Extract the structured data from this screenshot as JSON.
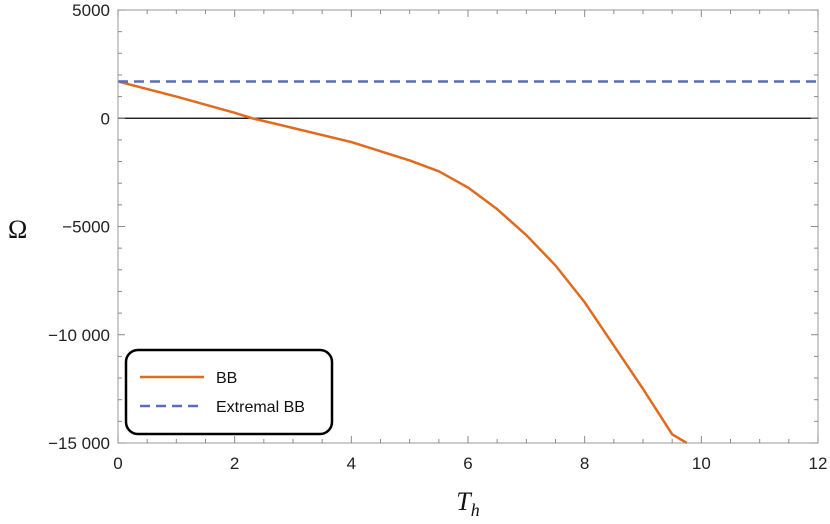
{
  "chart_data": {
    "type": "line",
    "title": "",
    "xlabel": "T_h",
    "xlabel_main": "T",
    "xlabel_sub": "h",
    "ylabel": "Ω",
    "xlim": [
      0,
      12
    ],
    "ylim": [
      -15000,
      5000
    ],
    "x_ticks": [
      0,
      2,
      4,
      6,
      8,
      10,
      12
    ],
    "x_tick_labels": [
      "0",
      "2",
      "4",
      "6",
      "8",
      "10",
      "12"
    ],
    "y_ticks": [
      5000,
      0,
      -5000,
      -10000,
      -15000
    ],
    "y_tick_labels": [
      "5000",
      "0",
      "−5000",
      "−10 000",
      "−15 000"
    ],
    "grid": false,
    "zero_line": true,
    "legend_position": "bottom-left",
    "series": [
      {
        "name": "BB",
        "style": "solid",
        "color": "#e06a1e",
        "x": [
          0,
          1,
          2,
          2.3,
          3,
          4,
          5,
          5.5,
          6,
          6.5,
          7,
          7.5,
          8,
          8.5,
          9,
          9.5,
          9.75
        ],
        "y": [
          1700,
          1000,
          250,
          0,
          -450,
          -1100,
          -1950,
          -2450,
          -3200,
          -4200,
          -5400,
          -6800,
          -8500,
          -10500,
          -12500,
          -14600,
          -15000
        ]
      },
      {
        "name": "Extremal BB",
        "style": "dashed",
        "color": "#5a6cbd",
        "x": [
          0,
          12
        ],
        "y": [
          1700,
          1700
        ]
      }
    ]
  }
}
